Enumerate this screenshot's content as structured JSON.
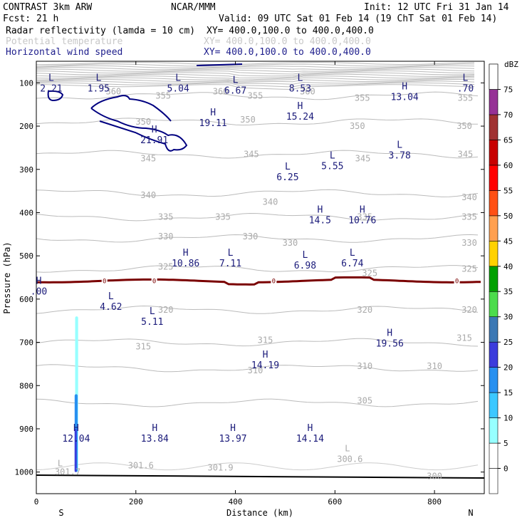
{
  "header": {
    "left1": "CONTRAST  3km ARW",
    "center1": "NCAR/MMM",
    "right1": "Init: 12 UTC Fri 31 Jan 14",
    "fcst": "Fcst:   21 h",
    "valid": "Valid: 09 UTC Sat 01 Feb 14 (19 ChT Sat 01 Feb 14)",
    "fields": [
      {
        "name": "Radar reflectivity (lamda = 10 cm)",
        "xy": "XY= 400.0,100.0 to 400.0,400.0",
        "color": "#000000"
      },
      {
        "name": "Potential temperature",
        "xy": "XY= 400.0,100.0 to 400.0,400.0",
        "color": "#c8c8c8"
      },
      {
        "name": "Horizontal wind speed",
        "xy": "XY= 400.0,100.0 to 400.0,400.0",
        "color": "#1e1e8c"
      }
    ]
  },
  "chart_data": {
    "type": "cross-section",
    "xlabel": "Distance (km)",
    "ylabel": "Pressure (hPa)",
    "xlim": [
      0,
      900
    ],
    "ylim": [
      1050,
      50
    ],
    "x_ticks": [
      0,
      200,
      400,
      600,
      800
    ],
    "y_ticks": [
      100,
      200,
      300,
      400,
      500,
      600,
      700,
      800,
      900,
      1000
    ],
    "end_labels": {
      "left": "S",
      "right": "N"
    },
    "colorbar": {
      "unit": "dBZ",
      "levels": [
        {
          "label": "0",
          "color": "#ffffff"
        },
        {
          "label": "5",
          "color": "#97ffff"
        },
        {
          "label": "10",
          "color": "#3cc8ff"
        },
        {
          "label": "15",
          "color": "#2890f0"
        },
        {
          "label": "20",
          "color": "#3c3cdc"
        },
        {
          "label": "25",
          "color": "#3c78b4"
        },
        {
          "label": "30",
          "color": "#4cdc4c"
        },
        {
          "label": "35",
          "color": "#00a000"
        },
        {
          "label": "40",
          "color": "#ffd200"
        },
        {
          "label": "45",
          "color": "#ffa050"
        },
        {
          "label": "50",
          "color": "#ff5014"
        },
        {
          "label": "55",
          "color": "#ff0000"
        },
        {
          "label": "60",
          "color": "#c80000"
        },
        {
          "label": "65",
          "color": "#a03232"
        },
        {
          "label": "70",
          "color": "#963296"
        },
        {
          "label": "75",
          "color": "#c88cc8"
        }
      ]
    },
    "theta_labels": [
      {
        "text": "360",
        "x": 155,
        "p": 120
      },
      {
        "text": "355",
        "x": 255,
        "p": 130
      },
      {
        "text": "360",
        "x": 370,
        "p": 120
      },
      {
        "text": "355",
        "x": 440,
        "p": 130
      },
      {
        "text": "360",
        "x": 545,
        "p": 120
      },
      {
        "text": "355",
        "x": 655,
        "p": 135
      },
      {
        "text": "355",
        "x": 862,
        "p": 135
      },
      {
        "text": "350",
        "x": 215,
        "p": 190
      },
      {
        "text": "350",
        "x": 425,
        "p": 185
      },
      {
        "text": "350",
        "x": 645,
        "p": 200
      },
      {
        "text": "350",
        "x": 860,
        "p": 200
      },
      {
        "text": "345",
        "x": 225,
        "p": 275
      },
      {
        "text": "345",
        "x": 432,
        "p": 265
      },
      {
        "text": "345",
        "x": 656,
        "p": 275
      },
      {
        "text": "345",
        "x": 862,
        "p": 265
      },
      {
        "text": "340",
        "x": 225,
        "p": 360
      },
      {
        "text": "340",
        "x": 470,
        "p": 375
      },
      {
        "text": "340",
        "x": 870,
        "p": 365
      },
      {
        "text": "335",
        "x": 260,
        "p": 410
      },
      {
        "text": "335",
        "x": 375,
        "p": 410
      },
      {
        "text": "335",
        "x": 660,
        "p": 410
      },
      {
        "text": "335",
        "x": 870,
        "p": 410
      },
      {
        "text": "330",
        "x": 260,
        "p": 455
      },
      {
        "text": "330",
        "x": 430,
        "p": 455
      },
      {
        "text": "330",
        "x": 510,
        "p": 470
      },
      {
        "text": "330",
        "x": 870,
        "p": 470
      },
      {
        "text": "325",
        "x": 260,
        "p": 525
      },
      {
        "text": "325",
        "x": 670,
        "p": 540
      },
      {
        "text": "325",
        "x": 870,
        "p": 530
      },
      {
        "text": "320",
        "x": 260,
        "p": 625
      },
      {
        "text": "320",
        "x": 660,
        "p": 625
      },
      {
        "text": "320",
        "x": 870,
        "p": 625
      },
      {
        "text": "315",
        "x": 215,
        "p": 710
      },
      {
        "text": "315",
        "x": 460,
        "p": 695
      },
      {
        "text": "315",
        "x": 860,
        "p": 690
      },
      {
        "text": "310",
        "x": 440,
        "p": 765
      },
      {
        "text": "310",
        "x": 660,
        "p": 755
      },
      {
        "text": "310",
        "x": 800,
        "p": 755
      },
      {
        "text": "305",
        "x": 660,
        "p": 835
      },
      {
        "text": "301.6",
        "x": 210,
        "p": 985
      },
      {
        "text": "301.9",
        "x": 370,
        "p": 990
      },
      {
        "text": "300.6",
        "x": 630,
        "p": 970
      },
      {
        "text": "300",
        "x": 800,
        "p": 1010
      },
      {
        "text": "301.7",
        "x": 63,
        "p": 1000
      }
    ],
    "theta_extrema": [
      {
        "type": "L",
        "x": 48,
        "p": 980
      },
      {
        "type": "L",
        "x": 625,
        "p": 945
      }
    ],
    "wind_extrema": [
      {
        "type": "L",
        "value": "2.21",
        "x": 30,
        "p": 95
      },
      {
        "type": "L",
        "value": "1.95",
        "x": 125,
        "p": 95
      },
      {
        "type": "L",
        "value": "5.04",
        "x": 285,
        "p": 95
      },
      {
        "type": "L",
        "value": "6.67",
        "x": 400,
        "p": 100
      },
      {
        "type": "L",
        "value": "8.53",
        "x": 530,
        "p": 95
      },
      {
        "type": "H",
        "value": "13.04",
        "x": 740,
        "p": 115
      },
      {
        "type": "L",
        "value": ".70",
        "x": 862,
        "p": 95
      },
      {
        "type": "H",
        "value": "19.11",
        "x": 355,
        "p": 175
      },
      {
        "type": "H",
        "value": "15.24",
        "x": 530,
        "p": 160
      },
      {
        "type": "H",
        "value": "21.91",
        "x": 237,
        "p": 215
      },
      {
        "type": "L",
        "value": "3.78",
        "x": 730,
        "p": 250
      },
      {
        "type": "L",
        "value": "5.55",
        "x": 595,
        "p": 275
      },
      {
        "type": "L",
        "value": "6.25",
        "x": 505,
        "p": 300
      },
      {
        "type": "H",
        "value": "14.5",
        "x": 570,
        "p": 400
      },
      {
        "type": "H",
        "value": "10.76",
        "x": 655,
        "p": 400
      },
      {
        "type": "H",
        "value": "10.86",
        "x": 300,
        "p": 500
      },
      {
        "type": "L",
        "value": "7.11",
        "x": 390,
        "p": 500
      },
      {
        "type": "L",
        "value": "6.98",
        "x": 540,
        "p": 505
      },
      {
        "type": "L",
        "value": "6.74",
        "x": 635,
        "p": 500
      },
      {
        "type": "H",
        "value": ".00",
        "x": 5,
        "p": 565
      },
      {
        "type": "L",
        "value": "4.62",
        "x": 150,
        "p": 600
      },
      {
        "type": "L",
        "value": "5.11",
        "x": 233,
        "p": 635
      },
      {
        "type": "H",
        "value": "19.56",
        "x": 710,
        "p": 685
      },
      {
        "type": "H",
        "value": "14.19",
        "x": 460,
        "p": 735
      },
      {
        "type": "H",
        "value": "12.04",
        "x": 80,
        "p": 905
      },
      {
        "type": "H",
        "value": "13.84",
        "x": 238,
        "p": 905
      },
      {
        "type": "H",
        "value": "13.97",
        "x": 395,
        "p": 905
      },
      {
        "type": "H",
        "value": "14.14",
        "x": 550,
        "p": 905
      }
    ],
    "freezing_level": {
      "label": "0",
      "label_x": [
        137,
        237,
        477,
        845
      ]
    },
    "reflectivity": [
      {
        "dbz": 5,
        "x": [
          78,
          84
        ],
        "p": [
          640,
          1000
        ]
      },
      {
        "dbz": 15,
        "x": [
          77,
          83
        ],
        "p": [
          820,
          1000
        ]
      },
      {
        "dbz": 20,
        "x": [
          77,
          81
        ],
        "p": [
          900,
          1000
        ]
      }
    ]
  }
}
